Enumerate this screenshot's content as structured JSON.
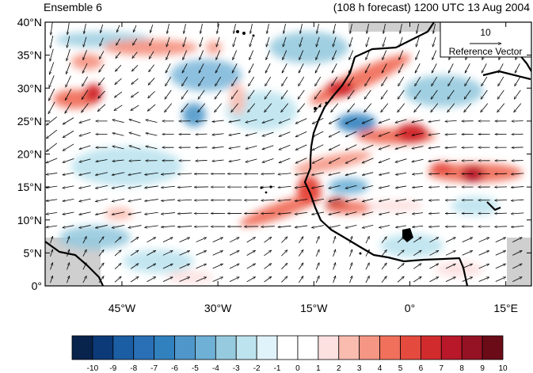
{
  "title_left": "Ensemble 6",
  "title_right": "(108 h forecast) 1200 UTC 13 Aug 2004",
  "reference_vector": {
    "value_label": "10",
    "label": "Reference Vector"
  },
  "lat_ticks": [
    {
      "value": 40,
      "label": "40°N"
    },
    {
      "value": 35,
      "label": "35°N"
    },
    {
      "value": 30,
      "label": "30°N"
    },
    {
      "value": 25,
      "label": "25°N"
    },
    {
      "value": 20,
      "label": "20°N"
    },
    {
      "value": 15,
      "label": "15°N"
    },
    {
      "value": 10,
      "label": "10°N"
    },
    {
      "value": 5,
      "label": "5°N"
    },
    {
      "value": 0,
      "label": "0°"
    }
  ],
  "lon_ticks": [
    {
      "value": -45,
      "label": "45°W"
    },
    {
      "value": -30,
      "label": "30°W"
    },
    {
      "value": -15,
      "label": "15°W"
    },
    {
      "value": 0,
      "label": "0°"
    },
    {
      "value": 15,
      "label": "15°E"
    }
  ],
  "colorbar": {
    "labels": [
      "-10",
      "-9",
      "-8",
      "-7",
      "-6",
      "-5",
      "-4",
      "-3",
      "-2",
      "-1",
      "0",
      "1",
      "2",
      "3",
      "4",
      "5",
      "6",
      "7",
      "8",
      "9",
      "10"
    ],
    "colors": [
      "#08234c",
      "#0c3a78",
      "#1c5ea4",
      "#2a70b6",
      "#3281bf",
      "#4f97ca",
      "#6fb0d6",
      "#96cade",
      "#bde3ee",
      "#e1f3fa",
      "#ffffff",
      "#ffffff",
      "#fde0e0",
      "#fbbcb0",
      "#f59684",
      "#f0705c",
      "#e54a3e",
      "#d22b2e",
      "#b8182a",
      "#941224",
      "#6b0b18"
    ]
  },
  "chart_data": {
    "type": "map",
    "projection": "cylindrical equidistant",
    "lon_range": [
      -57,
      19
    ],
    "lat_range": [
      0,
      40
    ],
    "field": "shaded anomaly, -10 to 10, with wind vectors",
    "notable_features": [
      "positive band along NW African coast ~27-33N",
      "positive band from 15N 20W to 23N 0",
      "maximum near 13N 12W",
      "maximum near 18N 10E",
      "maximum near 30N 48W"
    ]
  }
}
